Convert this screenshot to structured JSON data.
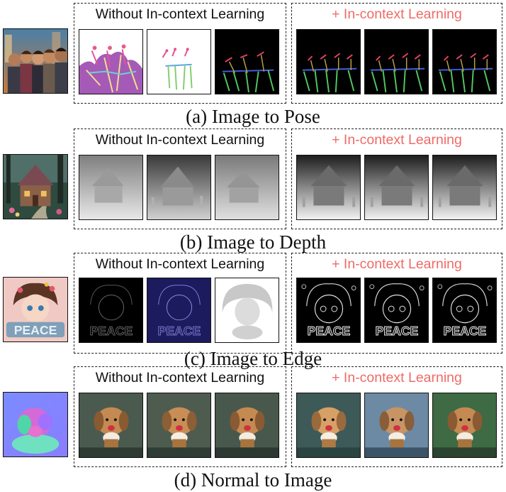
{
  "rows": [
    {
      "caption": "(a) Image to Pose",
      "left_title": "Without In-context Learning",
      "right_title": "+ In-context Learning",
      "input": "photo-friends-group",
      "left_outputs": [
        "pose-color-mixed",
        "pose-skeleton-sparse",
        "pose-skeleton-dark"
      ],
      "right_outputs": [
        "pose-skeleton-dark",
        "pose-skeleton-dark",
        "pose-skeleton-dark"
      ]
    },
    {
      "caption": "(b) Image to Depth",
      "left_title": "Without In-context Learning",
      "right_title": "+ In-context Learning",
      "input": "photo-fairy-house",
      "left_outputs": [
        "depth-blur",
        "depth-dark-house",
        "depth-blur"
      ],
      "right_outputs": [
        "depth-house",
        "depth-house",
        "depth-house"
      ]
    },
    {
      "caption": "(c) Image to Edge",
      "left_title": "Without In-context Learning",
      "right_title": "+ In-context Learning",
      "input": "illustration-peace-girl",
      "left_outputs": [
        "edge-faint",
        "edge-blue",
        "edge-inverted-white"
      ],
      "right_outputs": [
        "edge-detailed",
        "edge-detailed",
        "edge-detailed"
      ]
    },
    {
      "caption": "(d) Normal to Image",
      "left_title": "Without In-context Learning",
      "right_title": "+ In-context Learning",
      "input": "normal-map-dog",
      "left_outputs": [
        "photo-dog-cupcake",
        "photo-dog-cupcake",
        "photo-dog-cupcake"
      ],
      "right_outputs": [
        "photo-dog-cupcake",
        "photo-dog-cupcake-blue",
        "photo-dog-cupcake-green"
      ]
    }
  ],
  "colors": {
    "accent_red": "#ee6b66",
    "text": "#111111",
    "border": "#222222"
  }
}
